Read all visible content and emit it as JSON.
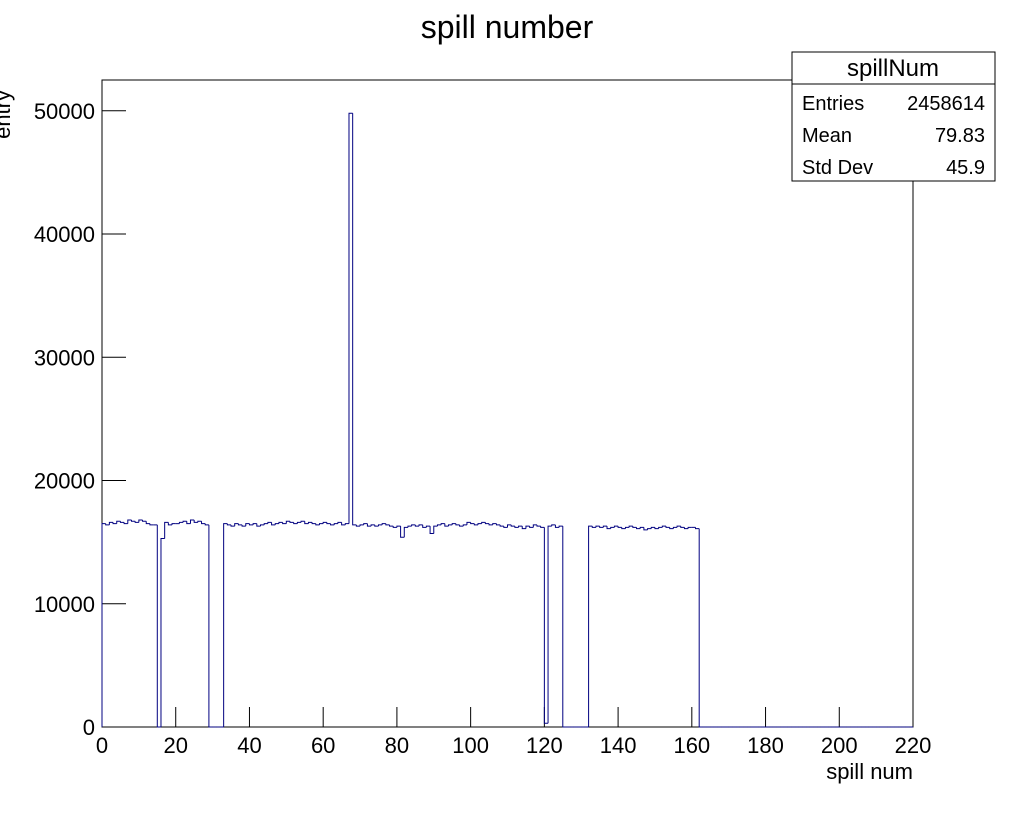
{
  "chart_data": {
    "type": "histogram",
    "title": "spill number",
    "x_label": "spill num",
    "y_label": "entry",
    "color": "#000080",
    "bins": [
      0,
      1,
      2,
      3,
      4,
      5,
      6,
      7,
      8,
      9,
      10,
      11,
      12,
      13,
      14,
      15,
      16,
      17,
      18,
      19,
      20,
      21,
      22,
      23,
      24,
      25,
      26,
      27,
      28,
      29,
      30,
      31,
      32,
      33,
      34,
      35,
      36,
      37,
      38,
      39,
      40,
      41,
      42,
      43,
      44,
      45,
      46,
      47,
      48,
      49,
      50,
      51,
      52,
      53,
      54,
      55,
      56,
      57,
      58,
      59,
      60,
      61,
      62,
      63,
      64,
      65,
      66,
      67,
      68,
      69,
      70,
      71,
      72,
      73,
      74,
      75,
      76,
      77,
      78,
      79,
      80,
      81,
      82,
      83,
      84,
      85,
      86,
      87,
      88,
      89,
      90,
      91,
      92,
      93,
      94,
      95,
      96,
      97,
      98,
      99,
      100,
      101,
      102,
      103,
      104,
      105,
      106,
      107,
      108,
      109,
      110,
      111,
      112,
      113,
      114,
      115,
      116,
      117,
      118,
      119,
      120,
      121,
      122,
      123,
      124,
      125,
      126,
      127,
      128,
      129,
      130,
      131,
      132,
      133,
      134,
      135,
      136,
      137,
      138,
      139,
      140,
      141,
      142,
      143,
      144,
      145,
      146,
      147,
      148,
      149,
      150,
      151,
      152,
      153,
      154,
      155,
      156,
      157,
      158,
      159,
      160,
      161,
      162,
      163,
      164,
      165,
      166,
      167,
      168,
      169,
      170,
      171,
      172,
      173,
      174,
      175,
      176,
      177,
      178,
      179,
      180,
      181,
      182,
      183,
      184,
      185,
      186,
      187,
      188,
      189,
      190,
      191,
      192,
      193,
      194,
      195,
      196,
      197,
      198,
      199,
      200,
      201,
      202,
      203,
      204,
      205,
      206,
      207,
      208,
      209,
      210,
      211,
      212,
      213,
      214,
      215,
      216,
      217,
      218,
      219,
      220
    ],
    "counts": [
      16500,
      16400,
      16600,
      16500,
      16700,
      16600,
      16500,
      16800,
      16700,
      16600,
      16800,
      16700,
      16500,
      16400,
      16400,
      0,
      15300,
      16600,
      16400,
      16500,
      16500,
      16600,
      16700,
      16500,
      16800,
      16600,
      16700,
      16500,
      16400,
      0,
      0,
      0,
      0,
      16500,
      16400,
      16300,
      16500,
      16400,
      16300,
      16500,
      16400,
      16500,
      16300,
      16400,
      16500,
      16600,
      16400,
      16500,
      16600,
      16500,
      16700,
      16600,
      16500,
      16600,
      16700,
      16500,
      16600,
      16500,
      16400,
      16500,
      16600,
      16500,
      16400,
      16500,
      16600,
      16400,
      16500,
      49800,
      16400,
      16300,
      16400,
      16500,
      16300,
      16400,
      16300,
      16400,
      16500,
      16400,
      16300,
      16200,
      16300,
      15400,
      16200,
      16300,
      16400,
      16300,
      16400,
      16200,
      16300,
      15700,
      16300,
      16400,
      16500,
      16300,
      16400,
      16500,
      16400,
      16300,
      16400,
      16600,
      16500,
      16400,
      16500,
      16600,
      16500,
      16400,
      16500,
      16400,
      16300,
      16200,
      16400,
      16300,
      16200,
      16300,
      16100,
      16300,
      16200,
      16400,
      16300,
      16200,
      300,
      16300,
      16400,
      16200,
      16300,
      0,
      0,
      0,
      0,
      0,
      0,
      0,
      16300,
      16200,
      16300,
      16200,
      16300,
      16100,
      16200,
      16300,
      16200,
      16100,
      16200,
      16300,
      16200,
      16100,
      16200,
      16000,
      16100,
      16200,
      16100,
      16200,
      16300,
      16200,
      16100,
      16200,
      16300,
      16200,
      16100,
      16200,
      16200,
      16100,
      0,
      0,
      0,
      0,
      0,
      0,
      0,
      0,
      0,
      0,
      0,
      0,
      0,
      0,
      0,
      0,
      0,
      0,
      0,
      0,
      0,
      0,
      0,
      0,
      0,
      0,
      0,
      0,
      0,
      0,
      0,
      0,
      0,
      0,
      0,
      0,
      0,
      0,
      0,
      0,
      0,
      0,
      0,
      0,
      0,
      0,
      0,
      0,
      0,
      0,
      0,
      0,
      0,
      0,
      0,
      0,
      0,
      0
    ],
    "xlim": [
      0,
      220
    ],
    "xticks": [
      0,
      20,
      40,
      60,
      80,
      100,
      120,
      140,
      160,
      180,
      200,
      220
    ],
    "ylim": [
      0,
      52500
    ],
    "yticks": [
      0,
      10000,
      20000,
      30000,
      40000,
      50000
    ],
    "stats": {
      "title": "spillNum",
      "rows": [
        [
          "Entries",
          2458614
        ],
        [
          "Mean",
          79.83
        ],
        [
          "Std Dev",
          45.9
        ]
      ]
    }
  }
}
